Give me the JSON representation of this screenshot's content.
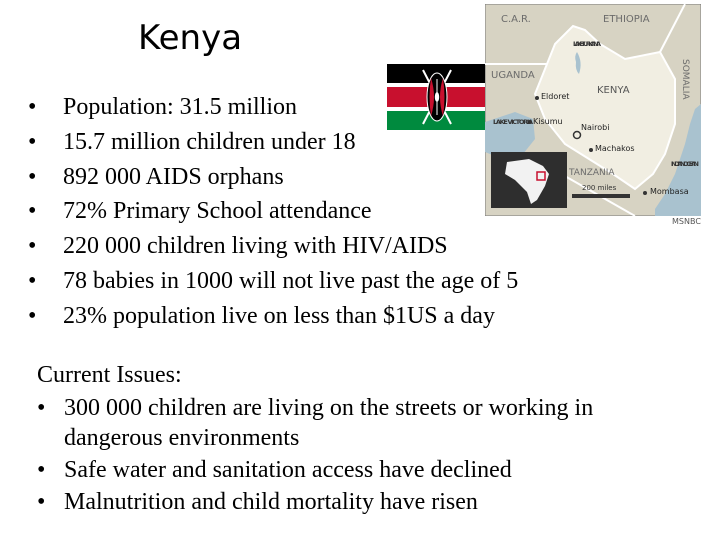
{
  "slide": {
    "title": "Kenya",
    "stats": [
      "Population: 31.5 million",
      "15.7 million children under 18",
      "892 000 AIDS orphans",
      "72% Primary School attendance",
      "220 000 children living with HIV/AIDS",
      "78 babies in 1000 will not live past the age of 5",
      "23% population live on less than $1US a day"
    ],
    "issues_heading": "Current Issues:",
    "issues": [
      "300 000 children are living on the streets or working in dangerous environments",
      "Safe water and sanitation access have declined",
      "Malnutrition and child mortality have risen"
    ]
  },
  "map": {
    "labels": {
      "car": "C.A.R.",
      "ethiopia": "ETHIOPIA",
      "uganda": "UGANDA",
      "somalia": "SOMALIA",
      "lake_turkana": "LAKE TURKANA",
      "kenya": "KENYA",
      "eldoret": "Eldoret",
      "lake_victoria": "LAKE VICTORIA",
      "kisumu": "Kisumu",
      "nairobi": "Nairobi",
      "machakos": "Machakos",
      "tanzania": "TANZANIA",
      "indian_ocean": "INDIAN OCEAN",
      "mombasa": "Mombasa",
      "scale": "200 miles"
    },
    "credit": "MSNBC",
    "colors": {
      "land_other": "#d7d3c3",
      "kenya": "#f1eee2",
      "water": "#a9c2cf",
      "border": "#ffffff"
    }
  },
  "flag": {
    "colors": {
      "black": "#000000",
      "red": "#c8102e",
      "green": "#008a3e",
      "white": "#ffffff"
    }
  }
}
